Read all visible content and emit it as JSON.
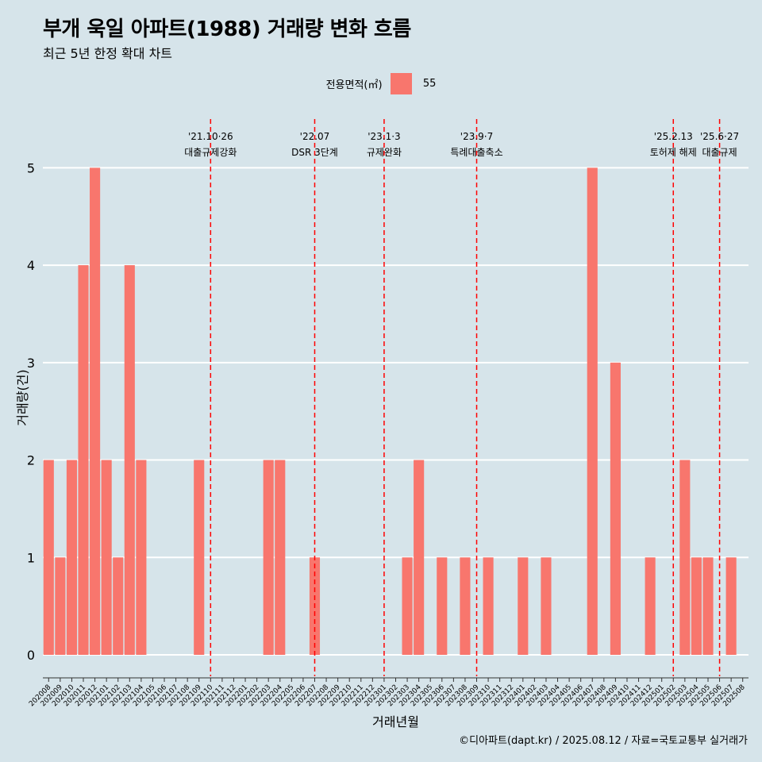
{
  "title": "부개 욱일 아파트(1988) 거래량 변화 흐름",
  "subtitle": "최근 5년 한정 확대 차트",
  "legend": {
    "title": "전용면적(㎡)",
    "items": [
      {
        "label": "55",
        "color": "#f8766d"
      }
    ]
  },
  "footer": "©디아파트(dapt.kr) / 2025.08.12 / 자료=국토교통부 실거래가",
  "colors": {
    "background": "#d6e4ea",
    "bar": "#f8766d",
    "grid": "#ffffff",
    "vline": "#ff0000"
  },
  "chart_data": {
    "type": "bar",
    "xlabel": "거래년월",
    "ylabel": "거래량(건)",
    "ylim": [
      -0.22,
      5.5
    ],
    "yticks": [
      0,
      1,
      2,
      3,
      4,
      5
    ],
    "grid": true,
    "legend_position": "top",
    "categories": [
      "202008",
      "202009",
      "202010",
      "202011",
      "202012",
      "202101",
      "202102",
      "202103",
      "202104",
      "202105",
      "202106",
      "202107",
      "202108",
      "202109",
      "202110",
      "202111",
      "202112",
      "202201",
      "202202",
      "202203",
      "202204",
      "202205",
      "202206",
      "202207",
      "202208",
      "202209",
      "202210",
      "202211",
      "202212",
      "202301",
      "202302",
      "202303",
      "202304",
      "202305",
      "202306",
      "202307",
      "202308",
      "202309",
      "202310",
      "202311",
      "202312",
      "202401",
      "202402",
      "202403",
      "202404",
      "202405",
      "202406",
      "202407",
      "202408",
      "202409",
      "202410",
      "202411",
      "202412",
      "202501",
      "202502",
      "202503",
      "202504",
      "202505",
      "202506",
      "202507",
      "202508"
    ],
    "series": [
      {
        "name": "55",
        "values": [
          2,
          1,
          2,
          4,
          5,
          2,
          1,
          4,
          2,
          0,
          0,
          0,
          0,
          2,
          0,
          0,
          0,
          0,
          0,
          2,
          2,
          0,
          0,
          1,
          0,
          0,
          0,
          0,
          0,
          0,
          0,
          1,
          2,
          0,
          1,
          0,
          1,
          0,
          1,
          0,
          0,
          1,
          0,
          1,
          0,
          0,
          0,
          5,
          0,
          3,
          0,
          0,
          1,
          0,
          0,
          2,
          1,
          1,
          0,
          1,
          0
        ]
      }
    ],
    "bar_present": [
      1,
      1,
      1,
      1,
      1,
      1,
      1,
      1,
      1,
      0,
      0,
      0,
      0,
      1,
      0,
      0,
      0,
      0,
      0,
      1,
      1,
      0,
      0,
      1,
      0,
      0,
      0,
      0,
      0,
      0,
      0,
      1,
      1,
      0,
      1,
      0,
      1,
      0,
      1,
      0,
      0,
      1,
      0,
      1,
      0,
      0,
      0,
      1,
      0,
      1,
      0,
      0,
      1,
      0,
      0,
      1,
      1,
      1,
      0,
      1,
      0
    ],
    "annotations": [
      {
        "date_label": "'21.10·26",
        "text": "대출규제강화",
        "x": "202110"
      },
      {
        "date_label": "'22.07",
        "text": "DSR 3단계",
        "x": "202207"
      },
      {
        "date_label": "'23.1·3",
        "text": "규제완화",
        "x": "202301"
      },
      {
        "date_label": "'23.9·7",
        "text": "특례대출축소",
        "x": "202309"
      },
      {
        "date_label": "'25.2.13",
        "text": "토허제 해제",
        "x": "202502"
      },
      {
        "date_label": "'25.6·27",
        "text": "대출규제",
        "x": "202506"
      }
    ]
  }
}
